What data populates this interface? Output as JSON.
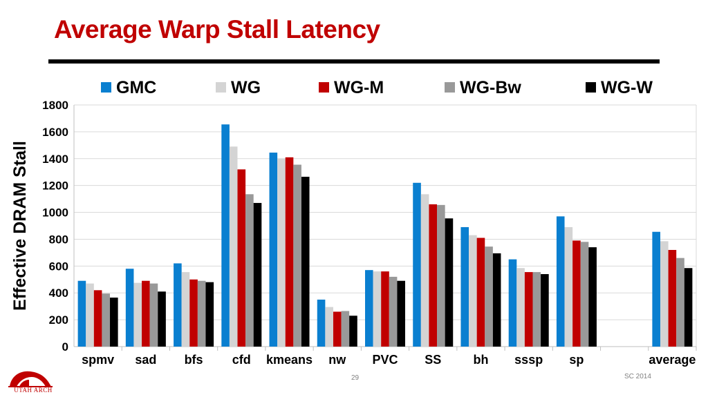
{
  "slide": {
    "title": "Average Warp Stall Latency",
    "page_number": "29",
    "conference": "SC 2014",
    "logo_text": "UTAH ARCH",
    "accent_color": "#c00000"
  },
  "chart_data": {
    "type": "bar",
    "title": "",
    "xlabel": "",
    "ylabel": "Effective DRAM Stall",
    "ylim": [
      0,
      1800
    ],
    "yticks": [
      0,
      200,
      400,
      600,
      800,
      1000,
      1200,
      1400,
      1600,
      1800
    ],
    "grid": true,
    "legend_position": "top",
    "categories": [
      "spmv",
      "sad",
      "bfs",
      "cfd",
      "kmeans",
      "nw",
      "PVC",
      "SS",
      "bh",
      "sssp",
      "sp",
      "",
      "average"
    ],
    "series": [
      {
        "name": "GMC",
        "color": "#0a7fd0",
        "values": [
          490,
          580,
          620,
          1655,
          1445,
          350,
          570,
          1220,
          890,
          650,
          970,
          null,
          855
        ]
      },
      {
        "name": "WG",
        "color": "#d4d4d4",
        "values": [
          470,
          475,
          555,
          1490,
          1400,
          295,
          560,
          1135,
          830,
          585,
          890,
          null,
          785
        ]
      },
      {
        "name": "WG-M",
        "color": "#c00000",
        "values": [
          420,
          490,
          500,
          1320,
          1410,
          260,
          560,
          1060,
          810,
          555,
          790,
          null,
          720
        ]
      },
      {
        "name": "WG-Bw",
        "color": "#999999",
        "values": [
          395,
          470,
          490,
          1135,
          1355,
          265,
          520,
          1055,
          745,
          555,
          780,
          null,
          660
        ]
      },
      {
        "name": "WG-W",
        "color": "#000000",
        "values": [
          365,
          410,
          480,
          1070,
          1265,
          230,
          490,
          955,
          695,
          540,
          740,
          null,
          585
        ]
      }
    ]
  }
}
